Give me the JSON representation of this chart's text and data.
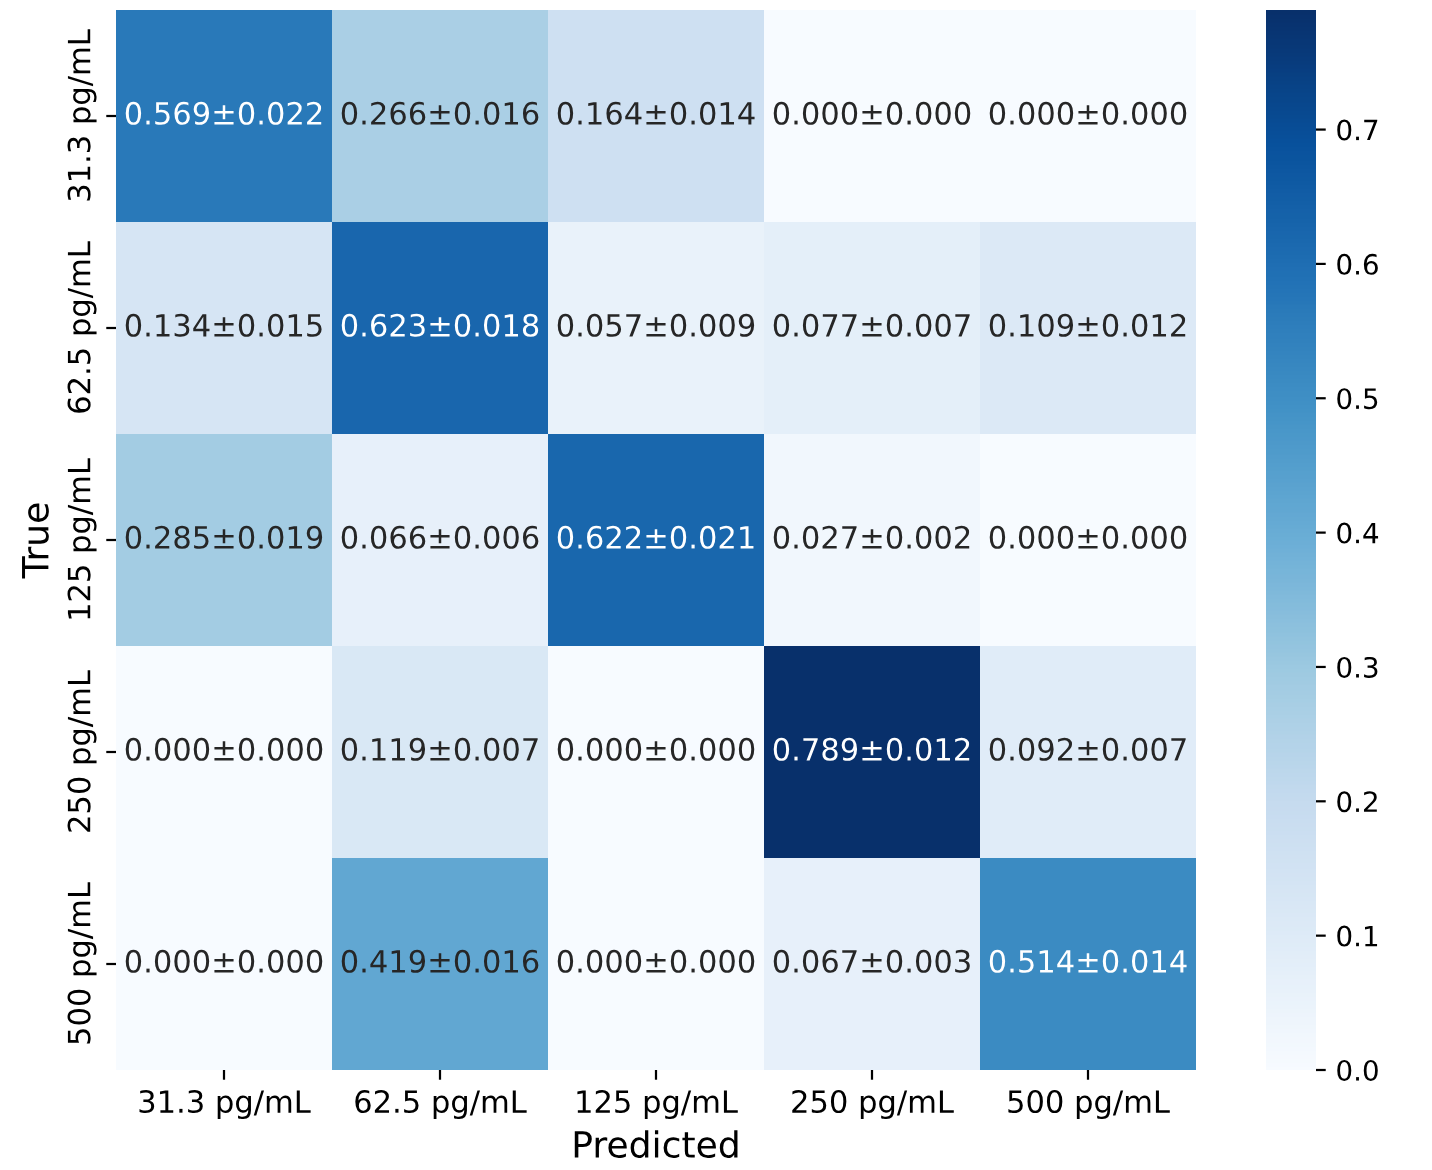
{
  "chart_data": {
    "type": "heatmap",
    "xlabel": "Predicted",
    "ylabel": "True",
    "categories": [
      "31.3 pg/mL",
      "62.5 pg/mL",
      "125 pg/mL",
      "250 pg/mL",
      "500 pg/mL"
    ],
    "y_categories": [
      "31.3 pg/mL",
      "62.5 pg/mL",
      "125 pg/mL",
      "250 pg/mL",
      "500 pg/mL"
    ],
    "cells": [
      [
        0.569,
        0.266,
        0.164,
        0.0,
        0.0
      ],
      [
        0.134,
        0.623,
        0.057,
        0.077,
        0.109
      ],
      [
        0.285,
        0.066,
        0.622,
        0.027,
        0.0
      ],
      [
        0.0,
        0.119,
        0.0,
        0.789,
        0.092
      ],
      [
        0.0,
        0.419,
        0.0,
        0.067,
        0.514
      ]
    ],
    "cell_labels": [
      [
        "0.569±0.022",
        "0.266±0.016",
        "0.164±0.014",
        "0.000±0.000",
        "0.000±0.000"
      ],
      [
        "0.134±0.015",
        "0.623±0.018",
        "0.057±0.009",
        "0.077±0.007",
        "0.109±0.012"
      ],
      [
        "0.285±0.019",
        "0.066±0.006",
        "0.622±0.021",
        "0.027±0.002",
        "0.000±0.000"
      ],
      [
        "0.000±0.000",
        "0.119±0.007",
        "0.000±0.000",
        "0.789±0.012",
        "0.092±0.007"
      ],
      [
        "0.000±0.000",
        "0.419±0.016",
        "0.000±0.000",
        "0.067±0.003",
        "0.514±0.014"
      ]
    ],
    "clim": [
      0,
      0.789
    ],
    "cticks": [
      {
        "value": 0,
        "label": "0.0"
      },
      0.1,
      0.2,
      0.3,
      0.4,
      0.5,
      0.6,
      0.7
    ]
  }
}
